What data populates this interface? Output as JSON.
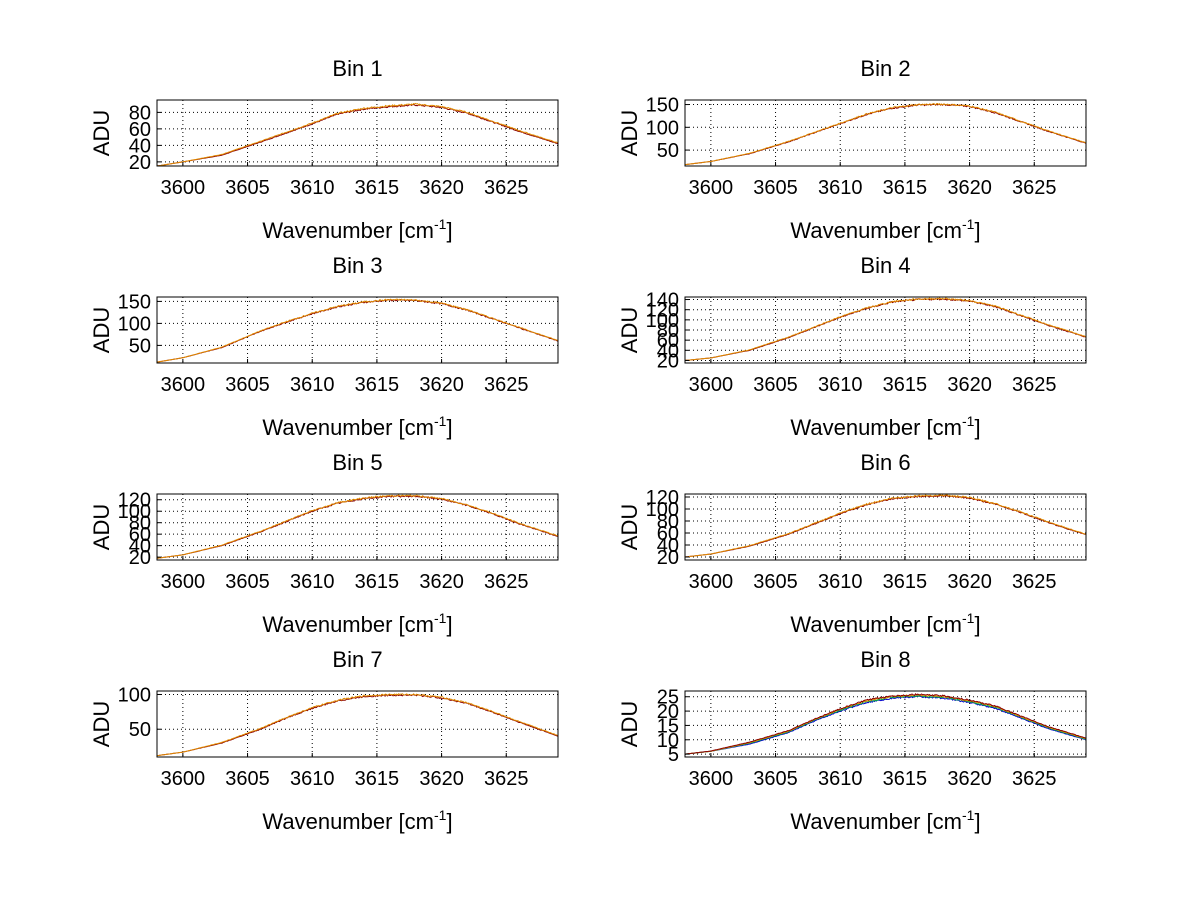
{
  "chart_data": [
    {
      "type": "line",
      "title": "Bin 1",
      "xlabel": "Wavenumber [cm",
      "xlabel_sup": "-1",
      "xlabel_suffix": "]",
      "ylabel": "ADU",
      "xlim": [
        3598,
        3629
      ],
      "ylim": [
        15,
        95
      ],
      "xticks": [
        3600,
        3605,
        3610,
        3615,
        3620,
        3625
      ],
      "yticks": [
        20,
        40,
        60,
        80
      ],
      "grid": true,
      "series": [
        {
          "color": "#8b0000",
          "x": [
            3598,
            3600,
            3603,
            3606,
            3608,
            3610,
            3612,
            3614,
            3616,
            3618,
            3620,
            3622,
            3624,
            3626,
            3629
          ],
          "y": [
            15,
            20,
            28,
            44,
            55,
            66,
            78,
            84,
            87,
            89,
            86,
            79,
            68,
            57,
            42
          ]
        },
        {
          "color": "#e08a00",
          "x": [
            3598,
            3600,
            3603,
            3606,
            3608,
            3610,
            3612,
            3614,
            3616,
            3618,
            3620,
            3622,
            3624,
            3626,
            3629
          ],
          "y": [
            15,
            20,
            29,
            45,
            56,
            67,
            79,
            85,
            88,
            90,
            87,
            80,
            69,
            58,
            43
          ]
        }
      ]
    },
    {
      "type": "line",
      "title": "Bin 2",
      "xlabel": "Wavenumber [cm",
      "xlabel_sup": "-1",
      "xlabel_suffix": "]",
      "ylabel": "ADU",
      "xlim": [
        3598,
        3629
      ],
      "ylim": [
        15,
        160
      ],
      "xticks": [
        3600,
        3605,
        3610,
        3615,
        3620,
        3625
      ],
      "yticks": [
        50,
        100,
        150
      ],
      "grid": true,
      "series": [
        {
          "color": "#8b0000",
          "x": [
            3598,
            3600,
            3603,
            3606,
            3608,
            3610,
            3612,
            3614,
            3616,
            3618,
            3620,
            3622,
            3624,
            3626,
            3629
          ],
          "y": [
            18,
            25,
            42,
            68,
            88,
            108,
            128,
            142,
            149,
            150,
            146,
            132,
            112,
            92,
            65
          ]
        },
        {
          "color": "#e08a00",
          "x": [
            3598,
            3600,
            3603,
            3606,
            3608,
            3610,
            3612,
            3614,
            3616,
            3618,
            3620,
            3622,
            3624,
            3626,
            3629
          ],
          "y": [
            18,
            25,
            43,
            69,
            89,
            109,
            129,
            143,
            150,
            151,
            147,
            133,
            113,
            93,
            66
          ]
        }
      ]
    },
    {
      "type": "line",
      "title": "Bin 3",
      "xlabel": "Wavenumber [cm",
      "xlabel_sup": "-1",
      "xlabel_suffix": "]",
      "ylabel": "ADU",
      "xlim": [
        3598,
        3629
      ],
      "ylim": [
        10,
        160
      ],
      "xticks": [
        3600,
        3605,
        3610,
        3615,
        3620,
        3625
      ],
      "yticks": [
        50,
        100,
        150
      ],
      "grid": true,
      "series": [
        {
          "color": "#8b0000",
          "x": [
            3598,
            3600,
            3603,
            3606,
            3608,
            3610,
            3612,
            3614,
            3616,
            3618,
            3620,
            3622,
            3624,
            3626,
            3629
          ],
          "y": [
            12,
            22,
            45,
            82,
            103,
            122,
            138,
            148,
            153,
            152,
            145,
            130,
            110,
            90,
            60
          ]
        },
        {
          "color": "#e08a00",
          "x": [
            3598,
            3600,
            3603,
            3606,
            3608,
            3610,
            3612,
            3614,
            3616,
            3618,
            3620,
            3622,
            3624,
            3626,
            3629
          ],
          "y": [
            12,
            22,
            46,
            83,
            104,
            123,
            139,
            149,
            154,
            153,
            146,
            131,
            111,
            91,
            61
          ]
        }
      ]
    },
    {
      "type": "line",
      "title": "Bin 4",
      "xlabel": "Wavenumber [cm",
      "xlabel_sup": "-1",
      "xlabel_suffix": "]",
      "ylabel": "ADU",
      "xlim": [
        3598,
        3629
      ],
      "ylim": [
        15,
        145
      ],
      "xticks": [
        3600,
        3605,
        3610,
        3615,
        3620,
        3625
      ],
      "yticks": [
        20,
        40,
        60,
        80,
        100,
        120,
        140
      ],
      "grid": true,
      "series": [
        {
          "color": "#8b0000",
          "x": [
            3598,
            3600,
            3603,
            3606,
            3608,
            3610,
            3612,
            3614,
            3616,
            3618,
            3620,
            3622,
            3624,
            3626,
            3629
          ],
          "y": [
            20,
            25,
            40,
            65,
            85,
            105,
            122,
            135,
            140,
            141,
            137,
            126,
            108,
            90,
            66
          ]
        },
        {
          "color": "#e08a00",
          "x": [
            3598,
            3600,
            3603,
            3606,
            3608,
            3610,
            3612,
            3614,
            3616,
            3618,
            3620,
            3622,
            3624,
            3626,
            3629
          ],
          "y": [
            20,
            25,
            41,
            66,
            86,
            106,
            123,
            136,
            141,
            142,
            138,
            127,
            109,
            91,
            67
          ]
        }
      ]
    },
    {
      "type": "line",
      "title": "Bin 5",
      "xlabel": "Wavenumber [cm",
      "xlabel_sup": "-1",
      "xlabel_suffix": "]",
      "ylabel": "ADU",
      "xlim": [
        3598,
        3629
      ],
      "ylim": [
        15,
        130
      ],
      "xticks": [
        3600,
        3605,
        3610,
        3615,
        3620,
        3625
      ],
      "yticks": [
        20,
        40,
        60,
        80,
        100,
        120
      ],
      "grid": true,
      "series": [
        {
          "color": "#8b0000",
          "x": [
            3598,
            3600,
            3603,
            3606,
            3608,
            3610,
            3612,
            3614,
            3616,
            3618,
            3620,
            3622,
            3624,
            3626,
            3629
          ],
          "y": [
            18,
            24,
            40,
            64,
            82,
            100,
            114,
            122,
            126,
            126,
            121,
            110,
            95,
            78,
            56
          ]
        },
        {
          "color": "#e08a00",
          "x": [
            3598,
            3600,
            3603,
            3606,
            3608,
            3610,
            3612,
            3614,
            3616,
            3618,
            3620,
            3622,
            3624,
            3626,
            3629
          ],
          "y": [
            18,
            24,
            41,
            65,
            83,
            101,
            115,
            123,
            127,
            127,
            122,
            111,
            96,
            79,
            57
          ]
        }
      ]
    },
    {
      "type": "line",
      "title": "Bin 6",
      "xlabel": "Wavenumber [cm",
      "xlabel_sup": "-1",
      "xlabel_suffix": "]",
      "ylabel": "ADU",
      "xlim": [
        3598,
        3629
      ],
      "ylim": [
        15,
        125
      ],
      "xticks": [
        3600,
        3605,
        3610,
        3615,
        3620,
        3625
      ],
      "yticks": [
        20,
        40,
        60,
        80,
        100,
        120
      ],
      "grid": true,
      "series": [
        {
          "color": "#8b0000",
          "x": [
            3598,
            3600,
            3603,
            3606,
            3608,
            3610,
            3612,
            3614,
            3616,
            3618,
            3620,
            3622,
            3624,
            3626,
            3629
          ],
          "y": [
            20,
            25,
            38,
            58,
            75,
            92,
            107,
            117,
            121,
            122,
            118,
            108,
            94,
            78,
            57
          ]
        },
        {
          "color": "#e08a00",
          "x": [
            3598,
            3600,
            3603,
            3606,
            3608,
            3610,
            3612,
            3614,
            3616,
            3618,
            3620,
            3622,
            3624,
            3626,
            3629
          ],
          "y": [
            20,
            25,
            39,
            59,
            76,
            93,
            108,
            118,
            122,
            123,
            119,
            109,
            95,
            79,
            58
          ]
        }
      ]
    },
    {
      "type": "line",
      "title": "Bin 7",
      "xlabel": "Wavenumber [cm",
      "xlabel_sup": "-1",
      "xlabel_suffix": "]",
      "ylabel": "ADU",
      "xlim": [
        3598,
        3629
      ],
      "ylim": [
        10,
        105
      ],
      "xticks": [
        3600,
        3605,
        3610,
        3615,
        3620,
        3625
      ],
      "yticks": [
        50,
        100
      ],
      "grid": true,
      "series": [
        {
          "color": "#8b0000",
          "x": [
            3598,
            3600,
            3603,
            3606,
            3608,
            3610,
            3612,
            3614,
            3616,
            3618,
            3620,
            3622,
            3624,
            3626,
            3629
          ],
          "y": [
            12,
            17,
            30,
            50,
            66,
            80,
            91,
            97,
            99,
            99,
            95,
            87,
            74,
            60,
            40
          ]
        },
        {
          "color": "#e08a00",
          "x": [
            3598,
            3600,
            3603,
            3606,
            3608,
            3610,
            3612,
            3614,
            3616,
            3618,
            3620,
            3622,
            3624,
            3626,
            3629
          ],
          "y": [
            12,
            17,
            31,
            51,
            67,
            81,
            92,
            98,
            100,
            100,
            96,
            88,
            75,
            61,
            41
          ]
        }
      ]
    },
    {
      "type": "line",
      "title": "Bin 8",
      "xlabel": "Wavenumber [cm",
      "xlabel_sup": "-1",
      "xlabel_suffix": "]",
      "ylabel": "ADU",
      "xlim": [
        3598,
        3629
      ],
      "ylim": [
        4,
        27
      ],
      "xticks": [
        3600,
        3605,
        3610,
        3615,
        3620,
        3625
      ],
      "yticks": [
        5,
        10,
        15,
        20,
        25
      ],
      "grid": true,
      "series": [
        {
          "color": "#0000cc",
          "x": [
            3598,
            3600,
            3603,
            3606,
            3608,
            3610,
            3612,
            3614,
            3616,
            3618,
            3620,
            3622,
            3624,
            3626,
            3629
          ],
          "y": [
            5,
            6,
            8.5,
            12.5,
            16.5,
            20,
            23,
            24.5,
            25,
            24.5,
            23,
            21,
            17.5,
            14,
            10
          ]
        },
        {
          "color": "#00aa44",
          "x": [
            3598,
            3600,
            3603,
            3606,
            3608,
            3610,
            3612,
            3614,
            3616,
            3618,
            3620,
            3622,
            3624,
            3626,
            3629
          ],
          "y": [
            5,
            6,
            8.8,
            12.8,
            16.8,
            20.3,
            23.3,
            24.8,
            25.3,
            24.8,
            23.3,
            21.3,
            17.8,
            14.3,
            10.2
          ]
        },
        {
          "color": "#e08a00",
          "x": [
            3598,
            3600,
            3603,
            3606,
            3608,
            3610,
            3612,
            3614,
            3616,
            3618,
            3620,
            3622,
            3624,
            3626,
            3629
          ],
          "y": [
            5,
            6,
            9,
            13,
            17,
            20.6,
            23.6,
            25.1,
            25.6,
            25.1,
            23.6,
            21.6,
            18,
            14.5,
            10.4
          ]
        },
        {
          "color": "#8b0000",
          "x": [
            3598,
            3600,
            3603,
            3606,
            3608,
            3610,
            3612,
            3614,
            3616,
            3618,
            3620,
            3622,
            3624,
            3626,
            3629
          ],
          "y": [
            5,
            6.1,
            9.2,
            13.2,
            17.2,
            20.8,
            23.8,
            25.3,
            25.8,
            25.3,
            23.8,
            21.8,
            18.2,
            14.7,
            10.6
          ]
        }
      ]
    }
  ]
}
